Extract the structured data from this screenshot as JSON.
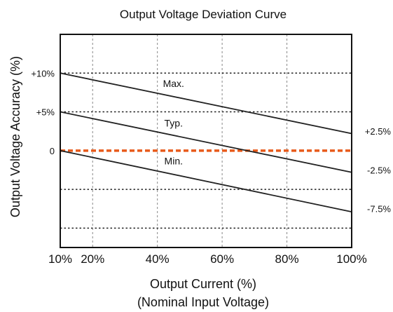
{
  "chart_data": {
    "type": "line",
    "title": "Output Voltage Deviation Curve",
    "xlabel": "Output Current (%)",
    "xlabel_note": "(Nominal Input Voltage)",
    "ylabel": "Output Voltage Accuracy (%)",
    "xlim": [
      10,
      100
    ],
    "ylim": [
      -12.5,
      15
    ],
    "x_ticks": [
      10,
      20,
      40,
      60,
      80,
      100
    ],
    "x_tick_labels": [
      "10%",
      "20%",
      "40%",
      "60%",
      "80%",
      "100%"
    ],
    "y_left_ticks": [
      {
        "value": 10,
        "label": "+10%"
      },
      {
        "value": 5,
        "label": "+5%"
      },
      {
        "value": 0,
        "label": "0"
      }
    ],
    "y_right_labels": [
      {
        "value": 2.5,
        "label": "+2.5%"
      },
      {
        "value": -2.5,
        "label": "-2.5%"
      },
      {
        "value": -7.5,
        "label": "-7.5%"
      }
    ],
    "h_dotted_lines": [
      10,
      5,
      -5,
      -10
    ],
    "reference_line": {
      "value": 0,
      "color": "#e85a1a",
      "style": "dashed"
    },
    "series": [
      {
        "name": "Max.",
        "x": [
          10,
          100
        ],
        "values": [
          10,
          2.2
        ],
        "label_at": [
          45,
          8.2
        ]
      },
      {
        "name": "Typ.",
        "x": [
          10,
          100
        ],
        "values": [
          5,
          -2.8
        ],
        "label_at": [
          45,
          3.1
        ]
      },
      {
        "name": "Min.",
        "x": [
          10,
          100
        ],
        "values": [
          0,
          -7.9
        ],
        "label_at": [
          45,
          -1.8
        ]
      }
    ],
    "grid": true,
    "colors": {
      "line": "#222222",
      "grid": "#888888",
      "reference": "#e85a1a"
    }
  }
}
